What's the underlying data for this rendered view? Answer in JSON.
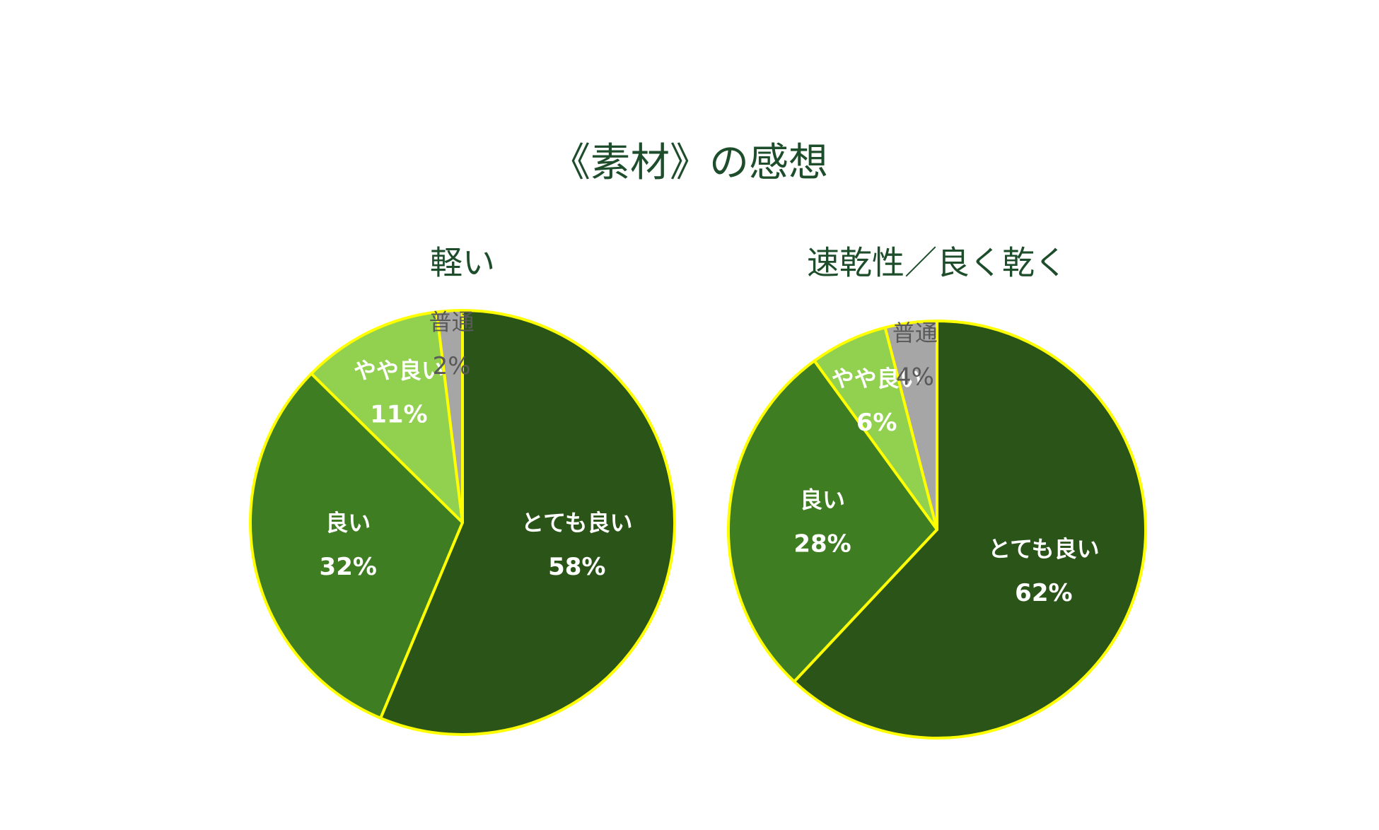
{
  "title": "《素材》の感想",
  "chart_data": [
    {
      "type": "pie",
      "title": "軽い",
      "categories": [
        "とても良い",
        "良い",
        "やや良い",
        "普通"
      ],
      "values": [
        58,
        32,
        11,
        2
      ],
      "value_labels": [
        "58%",
        "32%",
        "11%",
        "2%"
      ],
      "colors": [
        "#2a5418",
        "#3e7d22",
        "#92d050",
        "#a6a6a6"
      ]
    },
    {
      "type": "pie",
      "title": "速乾性／良く乾く",
      "categories": [
        "とても良い",
        "良い",
        "やや良い",
        "普通"
      ],
      "values": [
        62,
        28,
        6,
        4
      ],
      "value_labels": [
        "62%",
        "28%",
        "6%",
        "4%"
      ],
      "colors": [
        "#2a5418",
        "#3e7d22",
        "#92d050",
        "#a6a6a6"
      ]
    }
  ]
}
